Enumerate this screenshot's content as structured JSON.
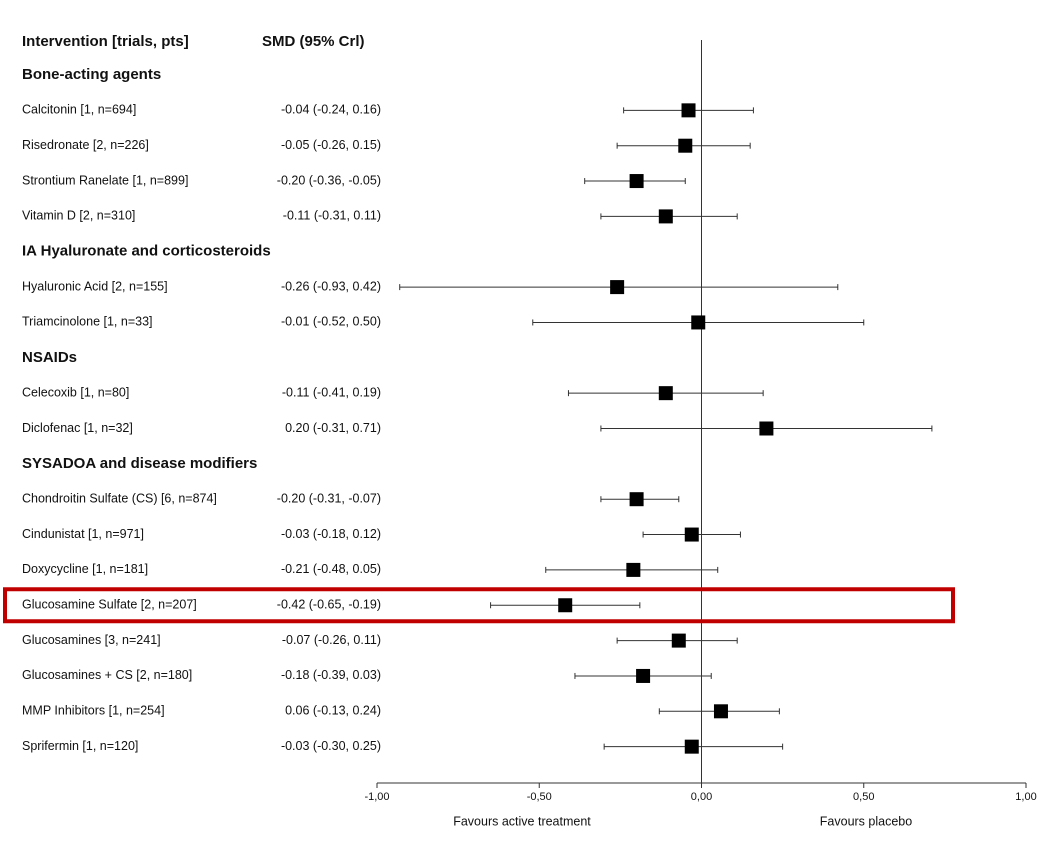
{
  "chart_data": {
    "type": "forest",
    "column_headers": [
      "Intervention [trials, pts]",
      "SMD (95% Crl)"
    ],
    "xlim": [
      -1,
      1
    ],
    "xticks": [
      {
        "value": -1,
        "label": "-1,00"
      },
      {
        "value": -0.5,
        "label": "-0,50"
      },
      {
        "value": 0,
        "label": "0,00"
      },
      {
        "value": 0.5,
        "label": "0,50"
      },
      {
        "value": 1,
        "label": "1,00"
      }
    ],
    "xlabel_left": "Favours active treatment",
    "xlabel_right": "Favours placebo",
    "color": "#000000",
    "highlight_color": "#c00000",
    "groups": [
      {
        "name": "Bone-acting agents",
        "rows": [
          {
            "label": "Calcitonin [1, n=694]",
            "value": -0.04,
            "low": -0.24,
            "high": 0.16,
            "value_label": "-0.04 (-0.24, 0.16)"
          },
          {
            "label": "Risedronate [2, n=226]",
            "value": -0.05,
            "low": -0.26,
            "high": 0.15,
            "value_label": "-0.05 (-0.26, 0.15)"
          },
          {
            "label": "Strontium Ranelate [1, n=899]",
            "value": -0.2,
            "low": -0.36,
            "high": -0.05,
            "value_label": "-0.20 (-0.36, -0.05)"
          },
          {
            "label": "Vitamin D [2, n=310]",
            "value": -0.11,
            "low": -0.31,
            "high": 0.11,
            "value_label": "-0.11 (-0.31, 0.11)"
          }
        ]
      },
      {
        "name": "IA Hyaluronate and corticosteroids",
        "rows": [
          {
            "label": "Hyaluronic Acid [2, n=155]",
            "value": -0.26,
            "low": -0.93,
            "high": 0.42,
            "value_label": "-0.26 (-0.93, 0.42)"
          },
          {
            "label": "Triamcinolone [1, n=33]",
            "value": -0.01,
            "low": -0.52,
            "high": 0.5,
            "value_label": "-0.01 (-0.52, 0.50)"
          }
        ]
      },
      {
        "name": "NSAIDs",
        "rows": [
          {
            "label": "Celecoxib [1, n=80]",
            "value": -0.11,
            "low": -0.41,
            "high": 0.19,
            "value_label": "-0.11 (-0.41, 0.19)"
          },
          {
            "label": "Diclofenac [1, n=32]",
            "value": 0.2,
            "low": -0.31,
            "high": 0.71,
            "value_label": "0.20 (-0.31, 0.71)"
          }
        ]
      },
      {
        "name": "SYSADOA and disease modifiers",
        "rows": [
          {
            "label": "Chondroitin Sulfate (CS) [6, n=874]",
            "value": -0.2,
            "low": -0.31,
            "high": -0.07,
            "value_label": "-0.20 (-0.31, -0.07)"
          },
          {
            "label": "Cindunistat [1, n=971]",
            "value": -0.03,
            "low": -0.18,
            "high": 0.12,
            "value_label": "-0.03 (-0.18, 0.12)"
          },
          {
            "label": "Doxycycline [1, n=181]",
            "value": -0.21,
            "low": -0.48,
            "high": 0.05,
            "value_label": "-0.21 (-0.48, 0.05)"
          },
          {
            "label": "Glucosamine Sulfate [2, n=207]",
            "value": -0.42,
            "low": -0.65,
            "high": -0.19,
            "value_label": "-0.42 (-0.65, -0.19)",
            "highlight": true
          },
          {
            "label": "Glucosamines [3, n=241]",
            "value": -0.07,
            "low": -0.26,
            "high": 0.11,
            "value_label": "-0.07 (-0.26, 0.11)"
          },
          {
            "label": "Glucosamines + CS [2, n=180]",
            "value": -0.18,
            "low": -0.39,
            "high": 0.03,
            "value_label": "-0.18 (-0.39, 0.03)"
          },
          {
            "label": "MMP Inhibitors [1, n=254]",
            "value": 0.06,
            "low": -0.13,
            "high": 0.24,
            "value_label": "0.06 (-0.13, 0.24)"
          },
          {
            "label": "Sprifermin [1, n=120]",
            "value": -0.03,
            "low": -0.3,
            "high": 0.25,
            "value_label": "-0.03 (-0.30, 0.25)"
          }
        ]
      }
    ]
  }
}
